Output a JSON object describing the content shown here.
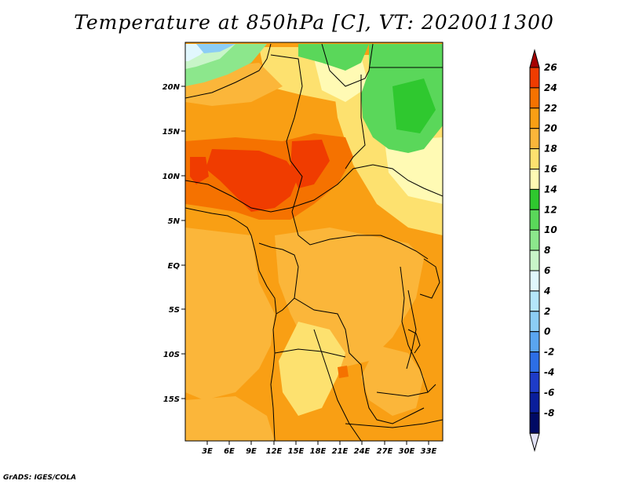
{
  "title": "Temperature at 850hPa [C], VT: 2020011300",
  "credit": "GrADS: IGES/COLA",
  "lat_labels": [
    "20N",
    "15N",
    "10N",
    "5N",
    "EQ",
    "5S",
    "10S",
    "15S"
  ],
  "lon_labels": [
    "3E",
    "6E",
    "9E",
    "12E",
    "15E",
    "18E",
    "21E",
    "24E",
    "27E",
    "30E",
    "33E"
  ],
  "colorbar": {
    "levels": [
      "26",
      "24",
      "22",
      "20",
      "18",
      "16",
      "14",
      "12",
      "10",
      "8",
      "6",
      "4",
      "2",
      "0",
      "-2",
      "-4",
      "-6",
      "-8"
    ],
    "colors": [
      "#a50000",
      "#f03c00",
      "#f57200",
      "#f99f14",
      "#fbb63a",
      "#fde16f",
      "#fffab4",
      "#2fc82f",
      "#5ad75a",
      "#8ce78c",
      "#c8f5c8",
      "#e1f7fd",
      "#b4e6fb",
      "#8ccdf5",
      "#5aa5f0",
      "#2d6ee6",
      "#1e3cc8",
      "#0a1e9b",
      "#000a64",
      "#e1e1f5"
    ]
  }
}
